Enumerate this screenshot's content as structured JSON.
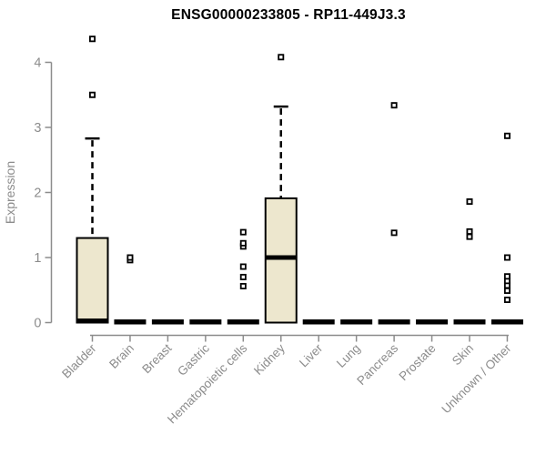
{
  "chart_data": {
    "type": "boxplot",
    "title": "ENSG00000233805 - RP11-449J3.3",
    "ylabel": "Expression",
    "xlabel": "",
    "ylim": [
      0,
      4.4
    ],
    "yticks": [
      0,
      1,
      2,
      3,
      4
    ],
    "grid": false,
    "legend": false,
    "categories": [
      "Bladder",
      "Brain",
      "Breast",
      "Gastric",
      "Hematopoietic cells",
      "Kidney",
      "Liver",
      "Lung",
      "Pancreas",
      "Prostate",
      "Skin",
      "Unknown / Other"
    ],
    "boxes": [
      {
        "category": "Bladder",
        "q1": 0,
        "median": 0,
        "q3": 1.3,
        "whisker_low": 0,
        "whisker_high": 2.83,
        "outliers": [
          3.5,
          4.36
        ]
      },
      {
        "category": "Brain",
        "q1": 0,
        "median": 0,
        "q3": 0,
        "whisker_low": 0,
        "whisker_high": 0,
        "outliers": [
          0.96,
          1.0
        ]
      },
      {
        "category": "Breast",
        "q1": 0,
        "median": 0,
        "q3": 0,
        "whisker_low": 0,
        "whisker_high": 0,
        "outliers": []
      },
      {
        "category": "Gastric",
        "q1": 0,
        "median": 0,
        "q3": 0,
        "whisker_low": 0,
        "whisker_high": 0,
        "outliers": []
      },
      {
        "category": "Hematopoietic cells",
        "q1": 0,
        "median": 0,
        "q3": 0,
        "whisker_low": 0,
        "whisker_high": 0,
        "outliers": [
          0.56,
          0.7,
          0.86,
          1.17,
          1.22,
          1.39
        ]
      },
      {
        "category": "Kidney",
        "q1": 0,
        "median": 1.0,
        "q3": 1.91,
        "whisker_low": 0,
        "whisker_high": 3.32,
        "outliers": [
          4.08
        ]
      },
      {
        "category": "Liver",
        "q1": 0,
        "median": 0,
        "q3": 0,
        "whisker_low": 0,
        "whisker_high": 0,
        "outliers": []
      },
      {
        "category": "Lung",
        "q1": 0,
        "median": 0,
        "q3": 0,
        "whisker_low": 0,
        "whisker_high": 0,
        "outliers": []
      },
      {
        "category": "Pancreas",
        "q1": 0,
        "median": 0,
        "q3": 0,
        "whisker_low": 0,
        "whisker_high": 0,
        "outliers": [
          1.38,
          3.34
        ]
      },
      {
        "category": "Prostate",
        "q1": 0,
        "median": 0,
        "q3": 0,
        "whisker_low": 0,
        "whisker_high": 0,
        "outliers": []
      },
      {
        "category": "Skin",
        "q1": 0,
        "median": 0,
        "q3": 0,
        "whisker_low": 0,
        "whisker_high": 0,
        "outliers": [
          1.32,
          1.4,
          1.86
        ]
      },
      {
        "category": "Unknown / Other",
        "q1": 0,
        "median": 0,
        "q3": 0,
        "whisker_low": 0,
        "whisker_high": 0,
        "outliers": [
          0.35,
          0.49,
          0.57,
          0.64,
          0.71,
          1.0,
          2.87
        ]
      }
    ],
    "colors": {
      "box_fill": "#EDE7CE",
      "box_stroke": "#000000",
      "median": "#000000",
      "whisker": "#000000",
      "outlier_stroke": "#000000",
      "outlier_fill": "#ffffff",
      "axis": "#8C8C8C",
      "tick_label": "#8C8C8C",
      "title": "#000000",
      "background": "#ffffff"
    }
  }
}
